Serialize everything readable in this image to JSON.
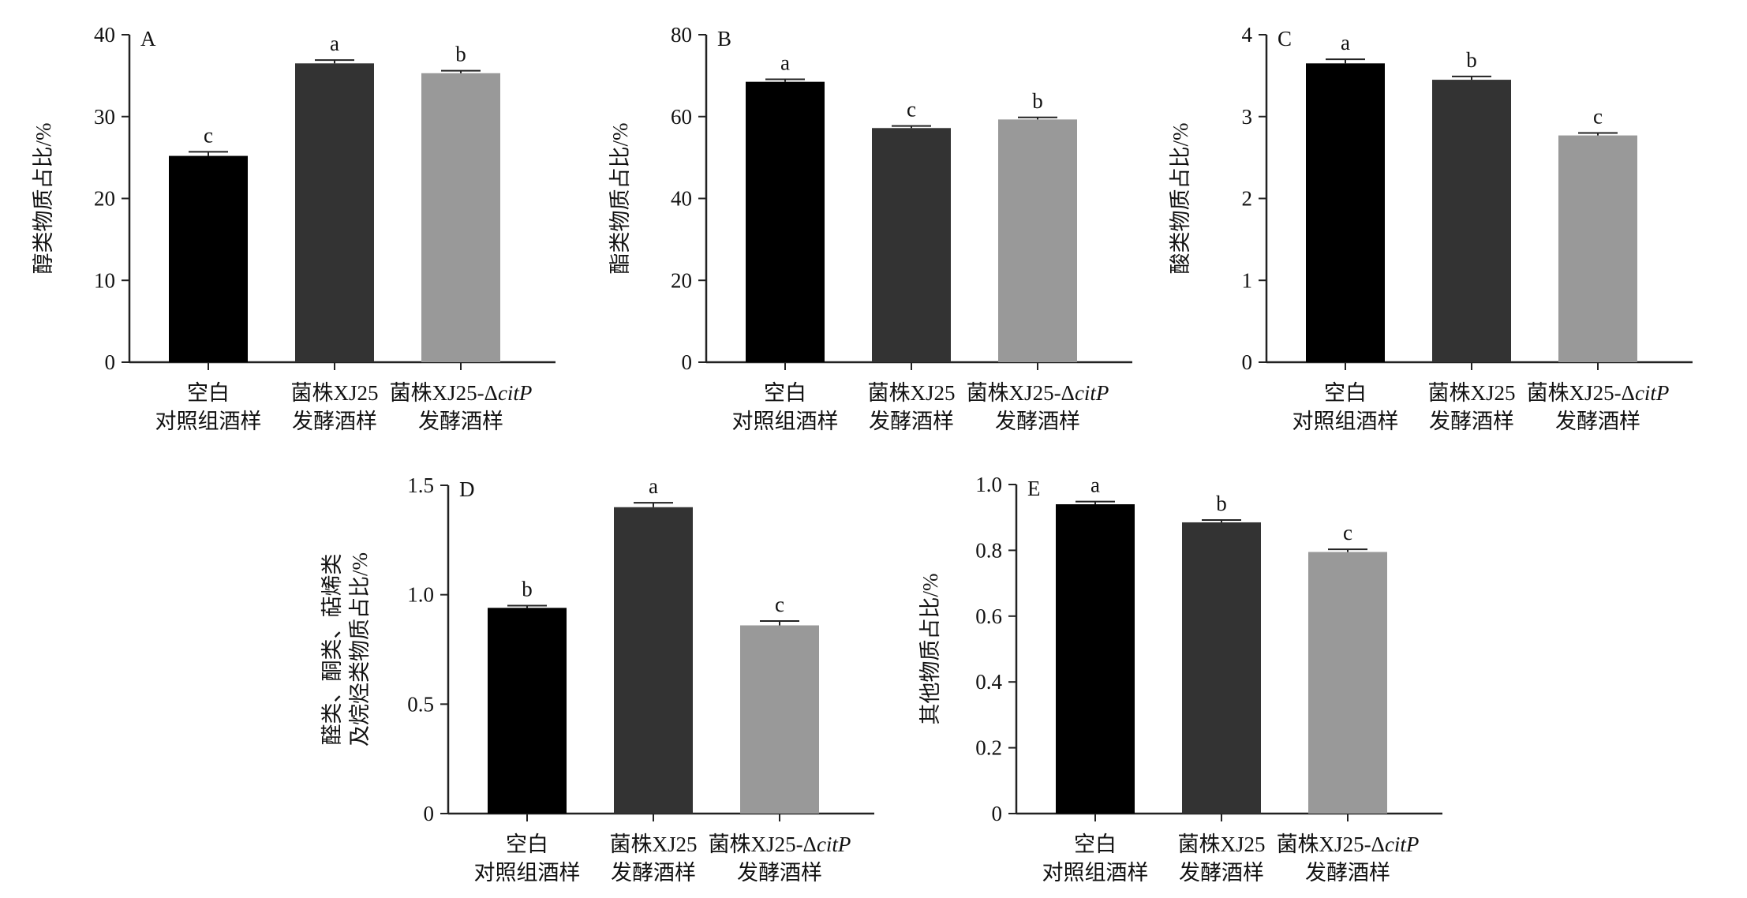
{
  "chart_data": [
    {
      "type": "bar",
      "panel": "A",
      "ylabel": [
        "醇类物质占比/%"
      ],
      "ylim": [
        0,
        40
      ],
      "yticks": [
        "0",
        "10",
        "20",
        "30",
        "40"
      ],
      "categories": [
        [
          "空白",
          "对照组酒样"
        ],
        [
          "菌株XJ25",
          "发酵酒样"
        ],
        [
          "菌株XJ25-ΔcitP",
          "发酵酒样"
        ]
      ],
      "values": [
        25.2,
        36.5,
        35.3
      ],
      "errors": [
        0.5,
        0.4,
        0.3
      ],
      "letters": [
        "c",
        "a",
        "b"
      ],
      "colors": [
        "#000000",
        "#333333",
        "#999999"
      ]
    },
    {
      "type": "bar",
      "panel": "B",
      "ylabel": [
        "酯类物质占比/%"
      ],
      "ylim": [
        0,
        80
      ],
      "yticks": [
        "0",
        "20",
        "40",
        "60",
        "80"
      ],
      "categories": [
        [
          "空白",
          "对照组酒样"
        ],
        [
          "菌株XJ25",
          "发酵酒样"
        ],
        [
          "菌株XJ25-ΔcitP",
          "发酵酒样"
        ]
      ],
      "values": [
        68.5,
        57.2,
        59.3
      ],
      "errors": [
        0.6,
        0.5,
        0.5
      ],
      "letters": [
        "a",
        "c",
        "b"
      ],
      "colors": [
        "#000000",
        "#333333",
        "#999999"
      ]
    },
    {
      "type": "bar",
      "panel": "C",
      "ylabel": [
        "酸类物质占比/%"
      ],
      "ylim": [
        0,
        4
      ],
      "yticks": [
        "0",
        "1",
        "2",
        "3",
        "4"
      ],
      "categories": [
        [
          "空白",
          "对照组酒样"
        ],
        [
          "菌株XJ25",
          "发酵酒样"
        ],
        [
          "菌株XJ25-ΔcitP",
          "发酵酒样"
        ]
      ],
      "values": [
        3.65,
        3.45,
        2.77
      ],
      "errors": [
        0.05,
        0.04,
        0.03
      ],
      "letters": [
        "a",
        "b",
        "c"
      ],
      "colors": [
        "#000000",
        "#333333",
        "#999999"
      ]
    },
    {
      "type": "bar",
      "panel": "D",
      "ylabel": [
        "醛类、酮类、萜烯类",
        "及烷烃类物质占比/%"
      ],
      "ylim": [
        0,
        1.5
      ],
      "yticks": [
        "0",
        "0.5",
        "1.0",
        "1.5"
      ],
      "categories": [
        [
          "空白",
          "对照组酒样"
        ],
        [
          "菌株XJ25",
          "发酵酒样"
        ],
        [
          "菌株XJ25-ΔcitP",
          "发酵酒样"
        ]
      ],
      "values": [
        0.94,
        1.4,
        0.86
      ],
      "errors": [
        0.01,
        0.02,
        0.02
      ],
      "letters": [
        "b",
        "a",
        "c"
      ],
      "colors": [
        "#000000",
        "#333333",
        "#999999"
      ]
    },
    {
      "type": "bar",
      "panel": "E",
      "ylabel": [
        "其他物质占比/%"
      ],
      "ylim": [
        0,
        1.0
      ],
      "yticks": [
        "0",
        "0.2",
        "0.4",
        "0.6",
        "0.8",
        "1.0"
      ],
      "categories": [
        [
          "空白",
          "对照组酒样"
        ],
        [
          "菌株XJ25",
          "发酵酒样"
        ],
        [
          "菌株XJ25-ΔcitP",
          "发酵酒样"
        ]
      ],
      "values": [
        0.94,
        0.885,
        0.795
      ],
      "errors": [
        0.008,
        0.007,
        0.008
      ],
      "letters": [
        "a",
        "b",
        "c"
      ],
      "colors": [
        "#000000",
        "#333333",
        "#999999"
      ]
    }
  ]
}
